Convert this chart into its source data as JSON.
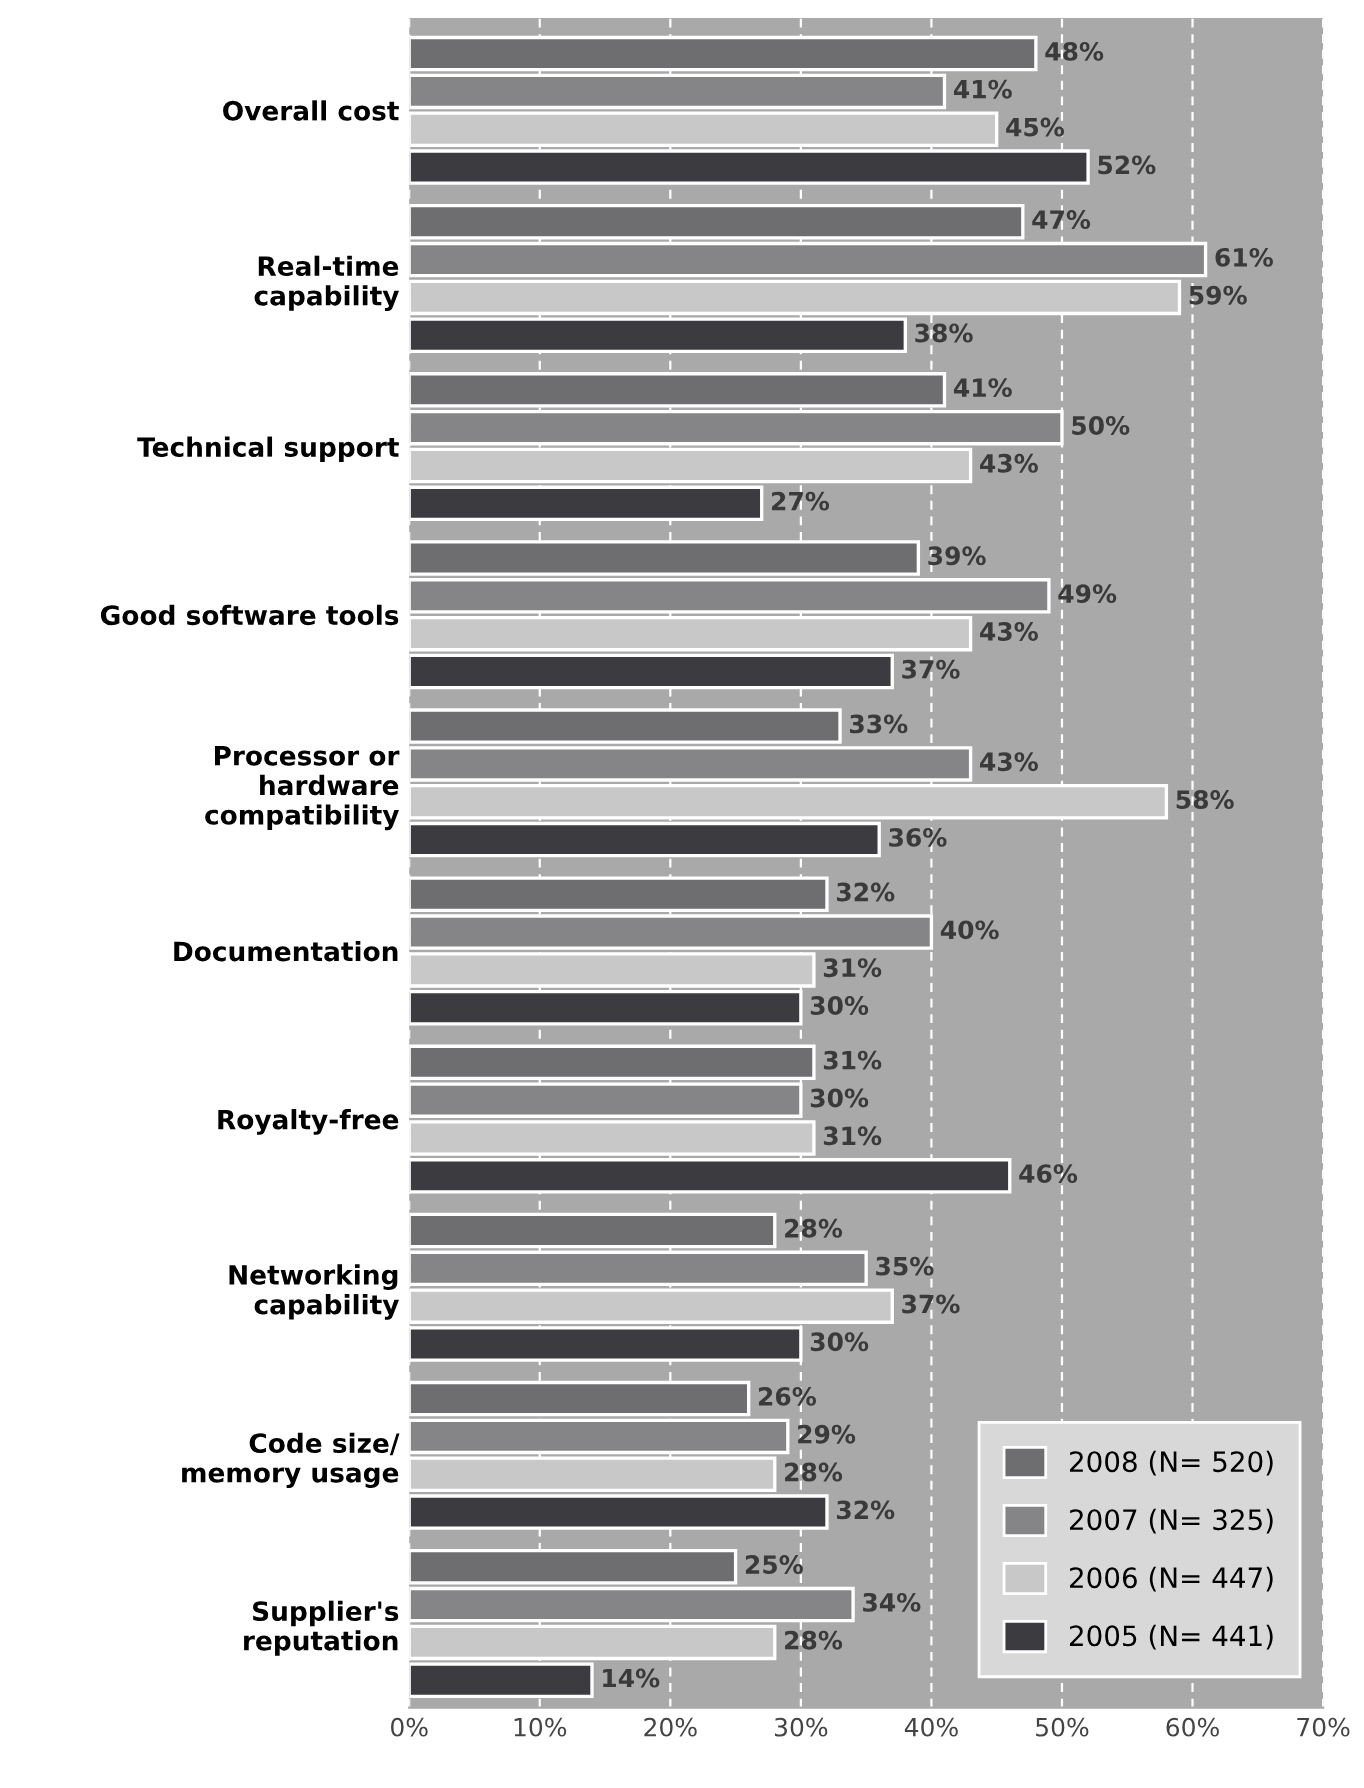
{
  "chart_data": {
    "type": "bar",
    "orientation": "horizontal",
    "categories": [
      "Overall cost",
      "Real-time\ncapability",
      "Technical support",
      "Good software tools",
      "Processor or\nhardware\ncompatibility",
      "Documentation",
      "Royalty-free",
      "Networking\ncapability",
      "Code size/\nmemory usage",
      "Supplier's\nreputation"
    ],
    "series": [
      {
        "name": "2008 (N= 520)",
        "color": "#6e6e70",
        "values": [
          48,
          47,
          41,
          39,
          33,
          32,
          31,
          28,
          26,
          25
        ],
        "value_labels": [
          "48%",
          "47%",
          "41%",
          "39%",
          "33%",
          "32%",
          "31%",
          "28%",
          "26%",
          "25%"
        ]
      },
      {
        "name": "2007 (N= 325)",
        "color": "#858587",
        "values": [
          41,
          61,
          50,
          49,
          43,
          40,
          30,
          35,
          29,
          34
        ],
        "value_labels": [
          "41%",
          "61%",
          "50%",
          "49%",
          "43%",
          "40%",
          "30%",
          "35%",
          "29%",
          "34%"
        ]
      },
      {
        "name": "2006 (N= 447)",
        "color": "#c8c8c8",
        "values": [
          45,
          59,
          43,
          43,
          58,
          31,
          31,
          37,
          28,
          28
        ],
        "value_labels": [
          "45%",
          "59%",
          "43%",
          "43%",
          "58%",
          "31%",
          "31%",
          "37%",
          "28%",
          "28%"
        ]
      },
      {
        "name": "2005 (N= 441)",
        "color": "#3c3c40",
        "values": [
          52,
          38,
          27,
          37,
          36,
          30,
          46,
          30,
          32,
          14
        ],
        "value_labels": [
          "52%",
          "38%",
          "27%",
          "37%",
          "36%",
          "30%",
          "46%",
          "30%",
          "32%",
          "14%"
        ]
      }
    ],
    "xlim": [
      0,
      70
    ],
    "xticks": [
      {
        "value": 0,
        "label": "0%"
      },
      {
        "value": 10,
        "label": "10%"
      },
      {
        "value": 20,
        "label": "20%"
      },
      {
        "value": 30,
        "label": "30%"
      },
      {
        "value": 40,
        "label": "40%"
      },
      {
        "value": 50,
        "label": "50%"
      },
      {
        "value": 60,
        "label": "60%"
      },
      {
        "value": 70,
        "label": "70%"
      }
    ],
    "grid": "x",
    "legend": "bottom right"
  }
}
